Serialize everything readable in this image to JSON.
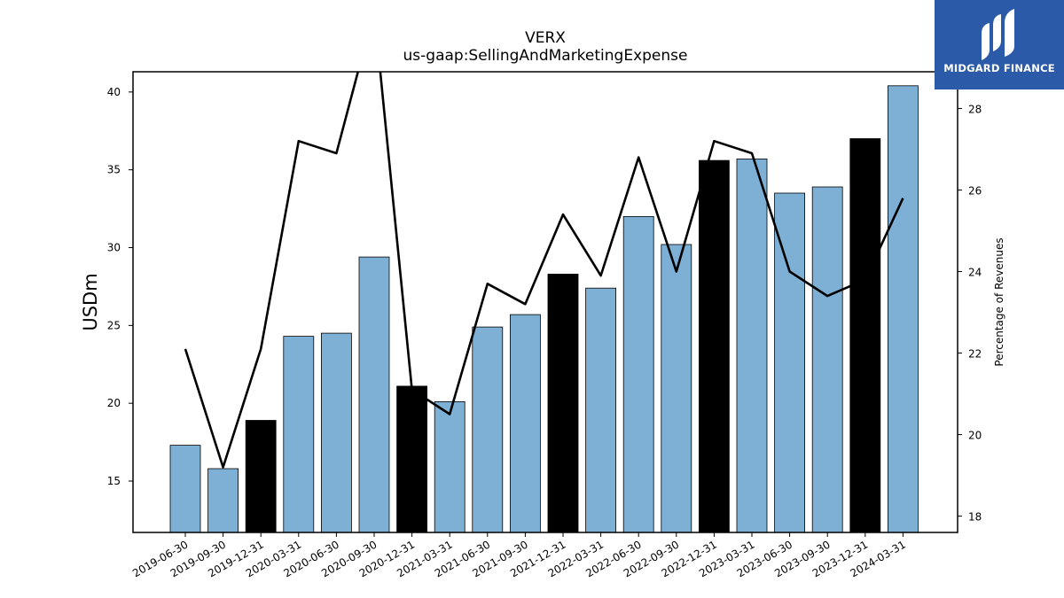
{
  "chart_data": {
    "type": "bar",
    "title": "VERX",
    "subtitle": "us-gaap:SellingAndMarketingExpense",
    "ylabel": "USDm",
    "y2label": "Percentage of Revenues",
    "ylim": [
      11.7,
      41.3
    ],
    "y2lim": [
      17.6,
      28.9
    ],
    "yticks": [
      15,
      20,
      25,
      30,
      35,
      40
    ],
    "y2ticks": [
      18,
      20,
      22,
      24,
      26,
      28
    ],
    "categories": [
      "2019-06-30",
      "2019-09-30",
      "2019-12-31",
      "2020-03-31",
      "2020-06-30",
      "2020-09-30",
      "2020-12-31",
      "2021-03-31",
      "2021-06-30",
      "2021-09-30",
      "2021-12-31",
      "2022-03-31",
      "2022-06-30",
      "2022-09-30",
      "2022-12-31",
      "2023-03-31",
      "2023-06-30",
      "2023-09-30",
      "2023-12-31",
      "2024-03-31"
    ],
    "values": [
      17.3,
      15.8,
      18.9,
      24.3,
      24.5,
      29.4,
      21.1,
      20.1,
      24.9,
      25.7,
      28.3,
      27.4,
      32.0,
      30.2,
      35.6,
      35.7,
      33.5,
      33.9,
      37.0,
      40.4
    ],
    "highlight": [
      false,
      false,
      true,
      false,
      false,
      false,
      true,
      false,
      false,
      false,
      true,
      false,
      false,
      false,
      true,
      false,
      false,
      false,
      true,
      false
    ],
    "line_values": [
      22.1,
      19.2,
      22.1,
      27.2,
      26.9,
      30.4,
      21.1,
      20.5,
      23.7,
      23.2,
      25.4,
      23.9,
      26.8,
      24.0,
      27.2,
      26.9,
      24.0,
      23.4,
      23.8,
      25.8
    ],
    "colors": {
      "bar": "#7eb0d5",
      "highlight": "#000000",
      "line": "#000000"
    }
  },
  "logo": {
    "text": "MIDGARD FINANCE",
    "background": "#2b5aa8"
  }
}
